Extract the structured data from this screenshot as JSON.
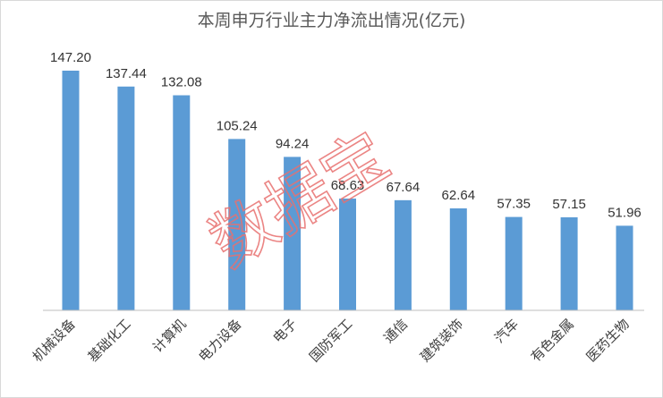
{
  "chart_data": {
    "type": "bar",
    "title": "本周申万行业主力净流出情况(亿元)",
    "categories": [
      "机械设备",
      "基础化工",
      "计算机",
      "电力设备",
      "电子",
      "国防军工",
      "通信",
      "建筑装饰",
      "汽车",
      "有色金属",
      "医药生物"
    ],
    "values": [
      147.2,
      137.44,
      132.08,
      105.24,
      94.24,
      68.63,
      67.64,
      62.64,
      57.35,
      57.15,
      51.96
    ],
    "value_labels": [
      "147.20",
      "137.44",
      "132.08",
      "105.24",
      "94.24",
      "68.63",
      "67.64",
      "62.64",
      "57.35",
      "57.15",
      "51.96"
    ],
    "ylim": [
      0,
      147.2
    ],
    "grid": false,
    "bar_color": "#5b9bd5"
  },
  "watermark": "数据宝",
  "colors": {
    "axis": "#bfbfbf",
    "watermark": "#e8706f"
  }
}
